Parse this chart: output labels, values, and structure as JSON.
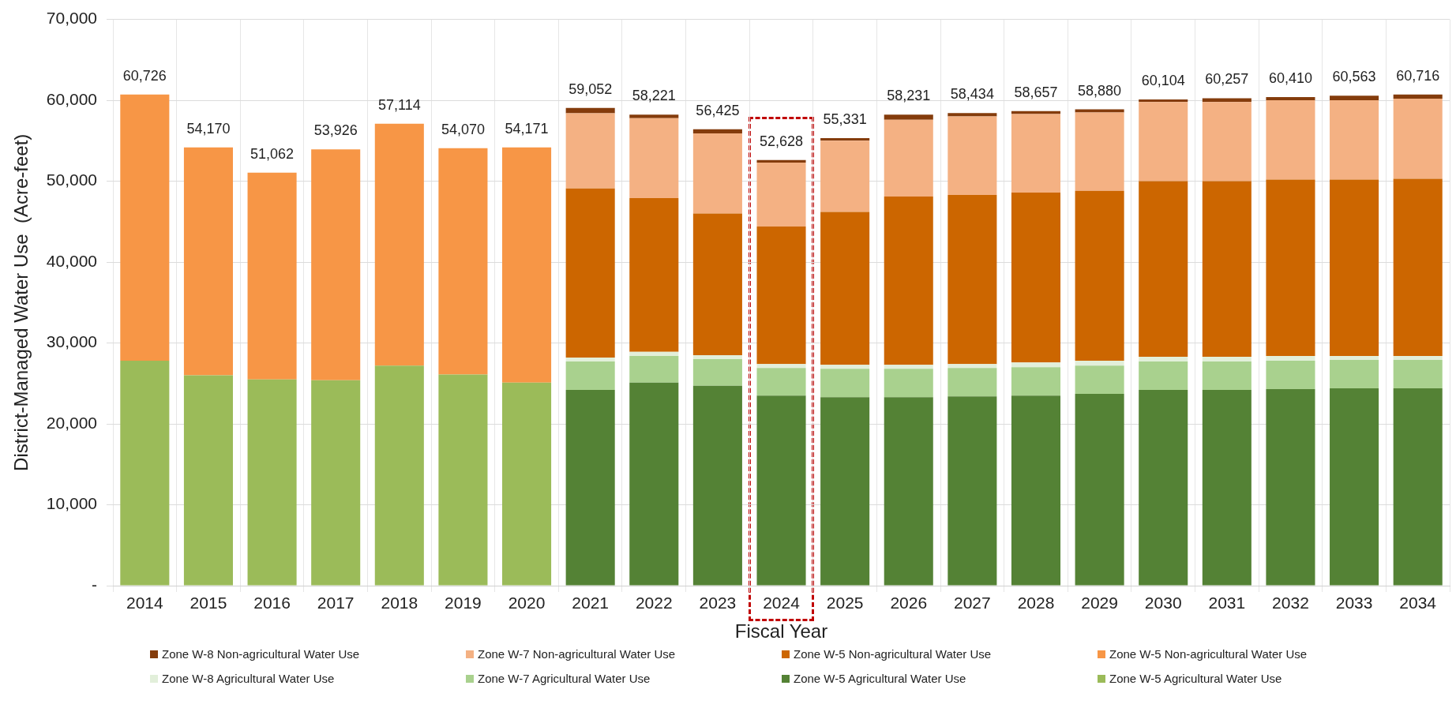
{
  "chart_data": {
    "type": "bar",
    "stacked": true,
    "xlabel": "Fiscal Year",
    "ylabel": "District-Managed Water Use  (Acre-feet)",
    "categories": [
      "2014",
      "2015",
      "2016",
      "2017",
      "2018",
      "2019",
      "2020",
      "2021",
      "2022",
      "2023",
      "2024",
      "2025",
      "2026",
      "2027",
      "2028",
      "2029",
      "2030",
      "2031",
      "2032",
      "2033",
      "2034"
    ],
    "series": [
      {
        "name": "Zone W-5 Agricultural Water Use",
        "color": "#9bbb59",
        "values": [
          27800,
          26000,
          25500,
          25400,
          27200,
          26100,
          25100,
          null,
          null,
          null,
          null,
          null,
          null,
          null,
          null,
          null,
          null,
          null,
          null,
          null,
          null
        ]
      },
      {
        "name": "Zone W-5 Agricultural Water Use",
        "color": "#548235",
        "values": [
          null,
          null,
          null,
          null,
          null,
          null,
          null,
          24200,
          25100,
          24700,
          23500,
          23300,
          23300,
          23400,
          23500,
          23700,
          24200,
          24200,
          24300,
          24400,
          24400
        ]
      },
      {
        "name": "Zone W-7 Agricultural Water Use",
        "color": "#a9d18e",
        "values": [
          null,
          null,
          null,
          null,
          null,
          null,
          null,
          3500,
          3300,
          3300,
          3400,
          3500,
          3500,
          3500,
          3500,
          3500,
          3500,
          3500,
          3500,
          3500,
          3500
        ]
      },
      {
        "name": "Zone W-8 Agricultural Water Use",
        "color": "#e2efda",
        "values": [
          null,
          null,
          null,
          null,
          null,
          null,
          null,
          500,
          500,
          500,
          500,
          500,
          500,
          500,
          600,
          600,
          600,
          600,
          600,
          500,
          500
        ]
      },
      {
        "name": "Zone W-5 Non-agricultural Water Use",
        "color": "#f79646",
        "values": [
          32926,
          28170,
          25562,
          28526,
          29914,
          27970,
          29071,
          null,
          null,
          null,
          null,
          null,
          null,
          null,
          null,
          null,
          null,
          null,
          null,
          null,
          null
        ]
      },
      {
        "name": "Zone W-5 Non-agricultural Water Use",
        "color": "#cc6600",
        "values": [
          null,
          null,
          null,
          null,
          null,
          null,
          null,
          20900,
          19000,
          17500,
          17000,
          18900,
          20800,
          20900,
          21000,
          21000,
          21700,
          21700,
          21800,
          21800,
          21900
        ]
      },
      {
        "name": "Zone W-7 Non-agricultural Water Use",
        "color": "#f4b183",
        "values": [
          null,
          null,
          null,
          null,
          null,
          null,
          null,
          9300,
          9900,
          9900,
          7900,
          8800,
          9500,
          9700,
          9700,
          9700,
          9800,
          9800,
          9800,
          9800,
          9900
        ]
      },
      {
        "name": "Zone W-8 Non-agricultural Water Use",
        "color": "#843c0c",
        "values": [
          null,
          null,
          null,
          null,
          null,
          null,
          null,
          652,
          421,
          525,
          328,
          331,
          631,
          434,
          357,
          380,
          304,
          457,
          410,
          563,
          516
        ]
      }
    ],
    "totals": [
      "60,726",
      "54,170",
      "51,062",
      "53,926",
      "57,114",
      "54,070",
      "54,171",
      "59,052",
      "58,221",
      "56,425",
      "52,628",
      "55,331",
      "58,231",
      "58,434",
      "58,657",
      "58,880",
      "60,104",
      "60,257",
      "60,410",
      "60,563",
      "60,716"
    ],
    "ylim": [
      0,
      70000
    ],
    "yticks": [
      {
        "value": 0,
        "label": "-"
      },
      {
        "value": 10000,
        "label": "10,000"
      },
      {
        "value": 20000,
        "label": "20,000"
      },
      {
        "value": 30000,
        "label": "30,000"
      },
      {
        "value": 40000,
        "label": "40,000"
      },
      {
        "value": 50000,
        "label": "50,000"
      },
      {
        "value": 60000,
        "label": "60,000"
      },
      {
        "value": 70000,
        "label": "70,000"
      }
    ],
    "grid": true,
    "legend": "bottom"
  }
}
